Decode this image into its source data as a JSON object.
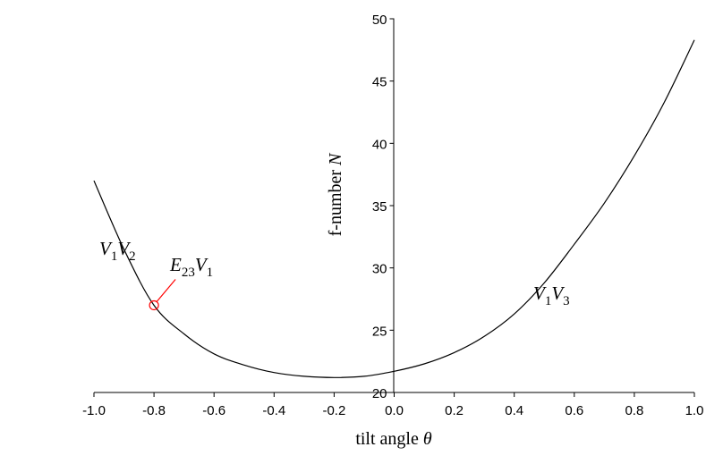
{
  "chart_data": {
    "type": "line",
    "xlabel": {
      "text": "tilt angle ",
      "var": "θ"
    },
    "ylabel": {
      "text": "f-number ",
      "var": "N"
    },
    "xlim": [
      -1.0,
      1.0
    ],
    "ylim": [
      20,
      50
    ],
    "xticks": [
      -1.0,
      -0.8,
      -0.6,
      -0.4,
      -0.2,
      0.0,
      0.2,
      0.4,
      0.6,
      0.8,
      1.0
    ],
    "xtick_labels": [
      "-1.0",
      "-0.8",
      "-0.6",
      "-0.4",
      "-0.2",
      "0.0",
      "0.2",
      "0.4",
      "0.6",
      "0.8",
      "1.0"
    ],
    "yticks": [
      20,
      25,
      30,
      35,
      40,
      45,
      50
    ],
    "ytick_labels": [
      "20",
      "25",
      "30",
      "35",
      "40",
      "45",
      "50"
    ],
    "grid": false,
    "series": [
      {
        "x": [
          -1.0,
          -0.9,
          -0.8,
          -0.7,
          -0.6,
          -0.5,
          -0.4,
          -0.3,
          -0.2,
          -0.1,
          0.0,
          0.1,
          0.2,
          0.3,
          0.4,
          0.5,
          0.6,
          0.7,
          0.8,
          0.9,
          1.0
        ],
        "y": [
          37.0,
          31.5,
          27.0,
          24.7,
          23.1,
          22.2,
          21.6,
          21.3,
          21.2,
          21.3,
          21.7,
          22.3,
          23.2,
          24.5,
          26.3,
          28.8,
          31.9,
          35.2,
          39.0,
          43.3,
          48.3
        ]
      }
    ],
    "markers": [
      {
        "x": -0.8,
        "y": 27.0,
        "color": "#ff0000"
      }
    ],
    "annotations": {
      "v1v2": {
        "base1": "V",
        "sub1": "1",
        "base2": "V",
        "sub2": "2"
      },
      "e23v1": {
        "base1": "E",
        "sub1": "23",
        "base2": "V",
        "sub2": "1"
      },
      "v1v3": {
        "base1": "V",
        "sub1": "1",
        "base2": "V",
        "sub2": "3"
      }
    },
    "leader_color": "#ff0000"
  }
}
